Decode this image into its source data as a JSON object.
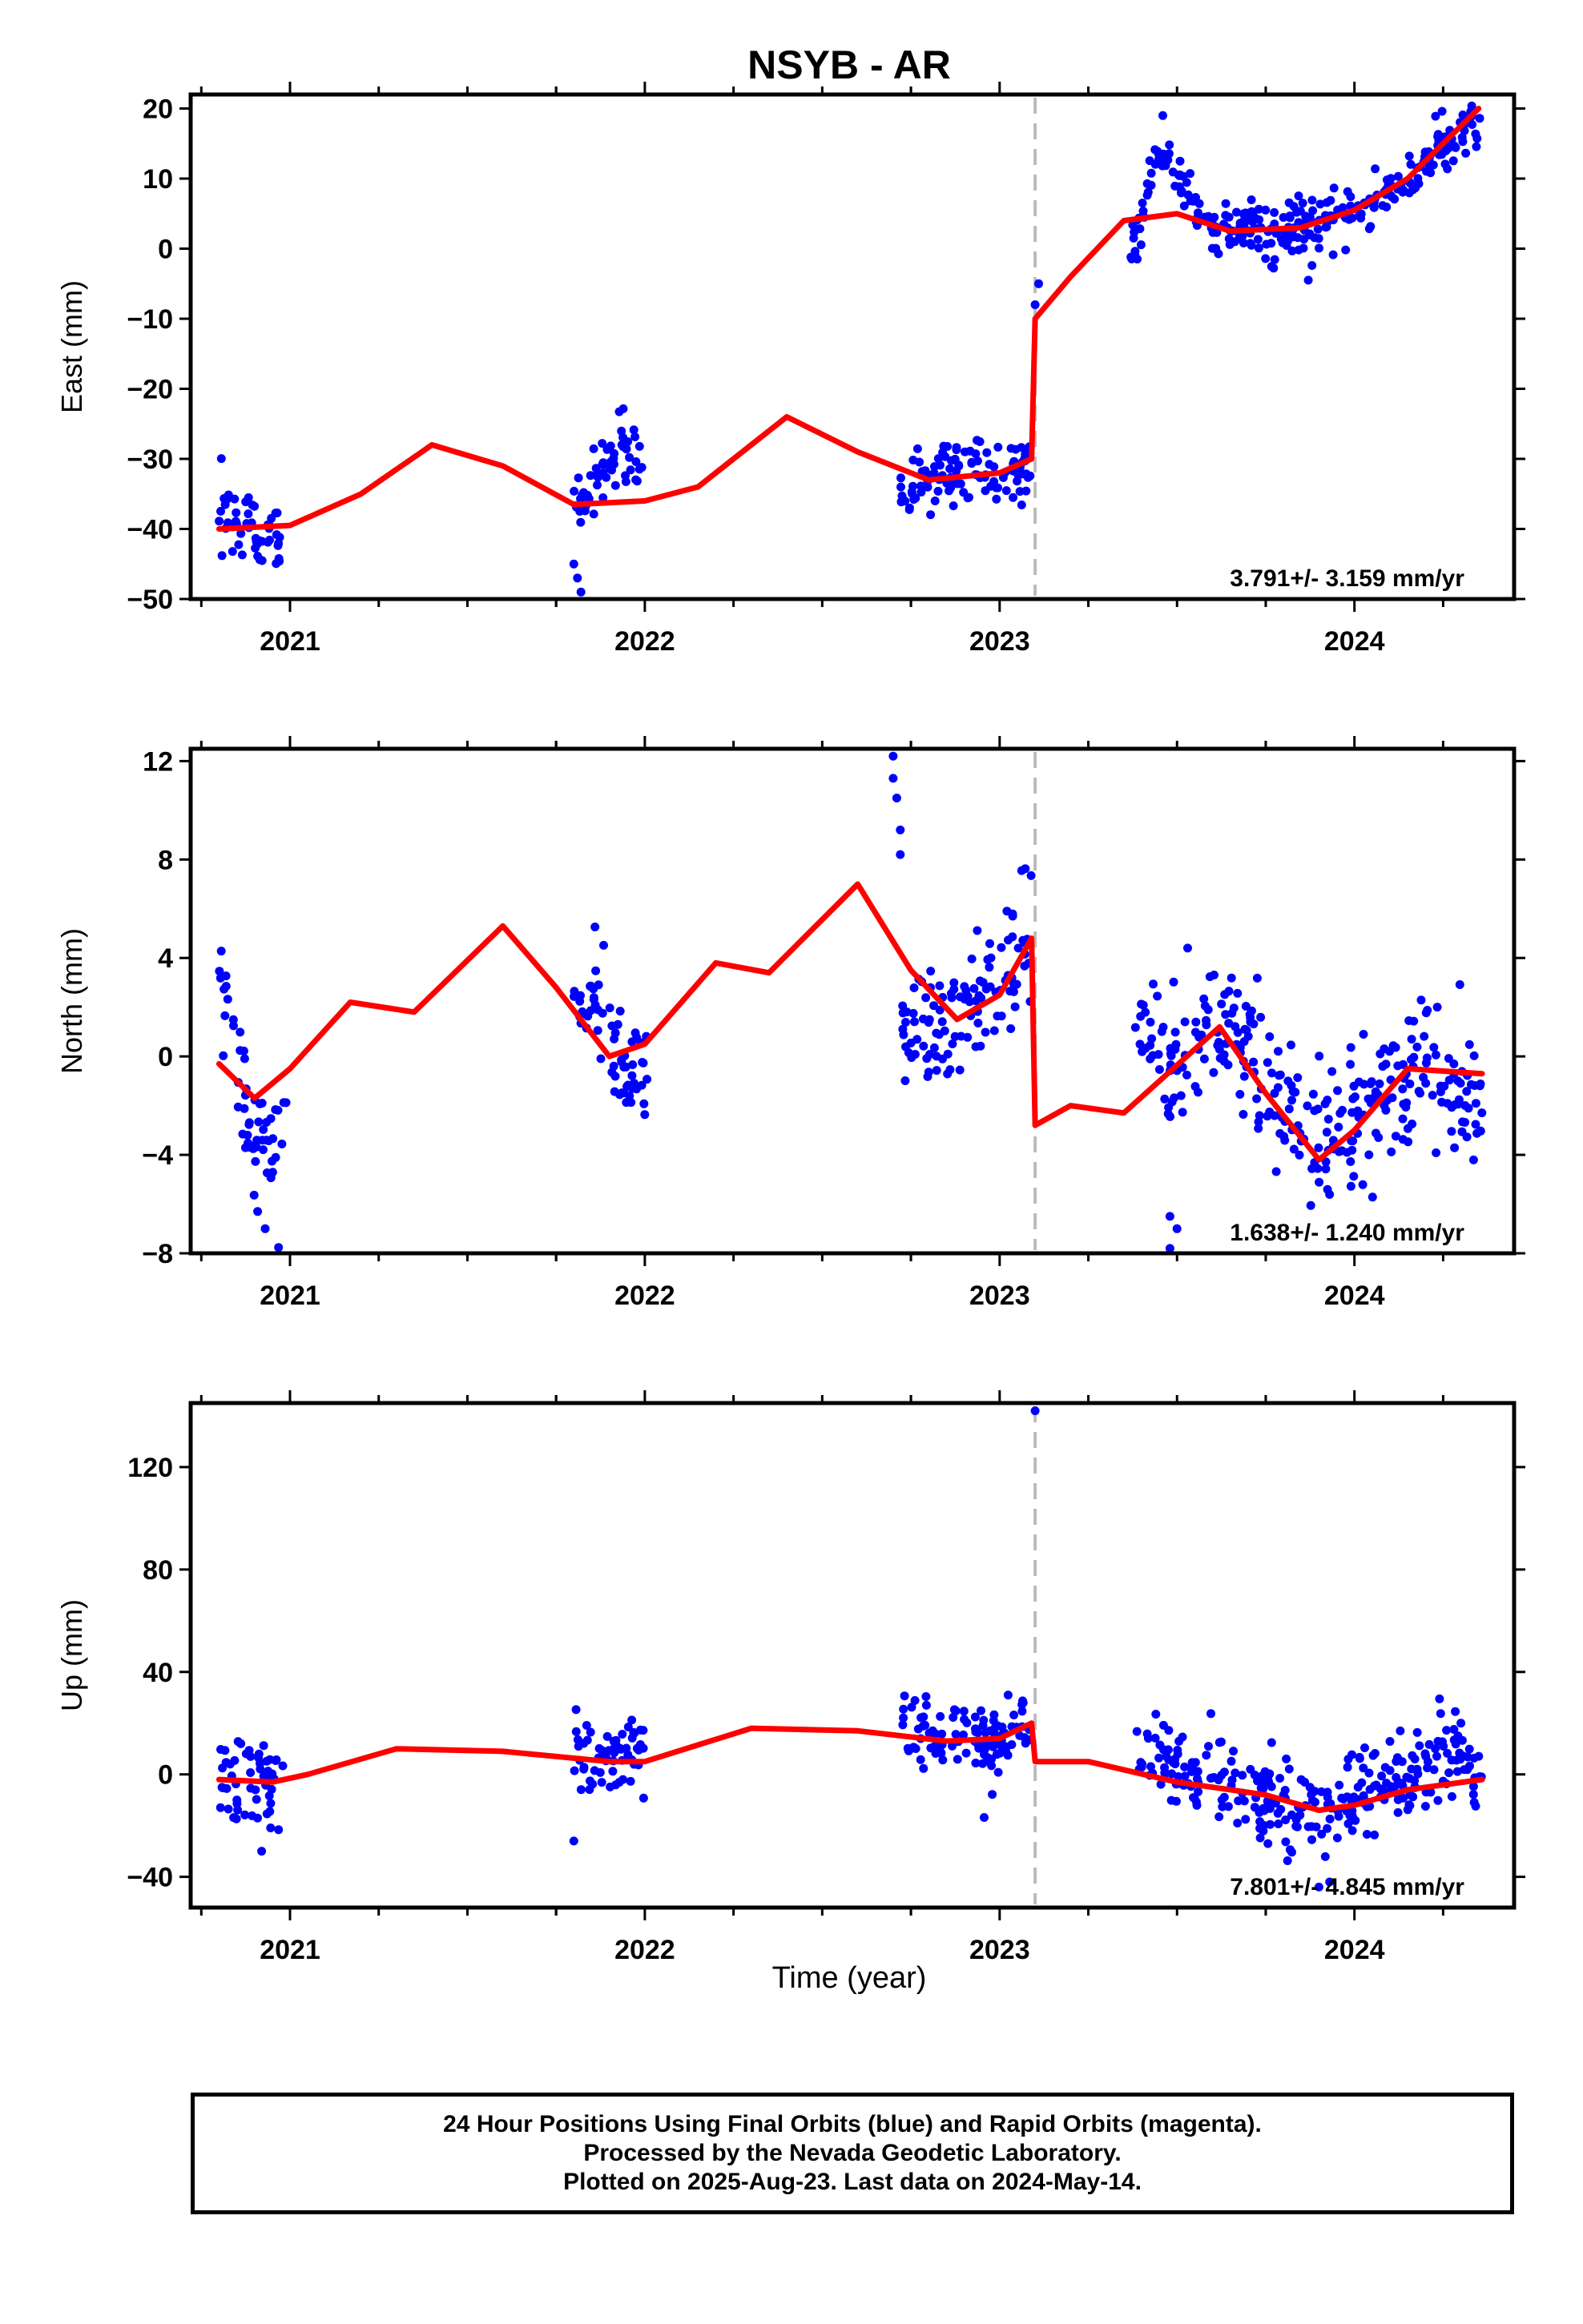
{
  "chart_data": {
    "type": "scatter",
    "title": "NSYB - AR",
    "xlabel": "Time (year)",
    "x_ticks": [
      "2021",
      "2022",
      "2023",
      "2024"
    ],
    "xlim": [
      2020.72,
      2024.45
    ],
    "offset_epoch": 2023.1,
    "colors": {
      "final_orbits": "#0000ff",
      "model_fit": "#ff0000",
      "offset_line": "#bbbbbb"
    },
    "panels": [
      {
        "name": "East",
        "ylabel": "East (mm)",
        "ylim": [
          -50,
          22
        ],
        "y_ticks": [
          20,
          10,
          0,
          -10,
          -20,
          -30,
          -40,
          -50
        ],
        "rate": "3.791+/- 3.159 mm/yr",
        "fit": [
          [
            2020.8,
            -40
          ],
          [
            2021.0,
            -39.5
          ],
          [
            2021.2,
            -35
          ],
          [
            2021.4,
            -28
          ],
          [
            2021.6,
            -31
          ],
          [
            2021.8,
            -36.5
          ],
          [
            2022.0,
            -36
          ],
          [
            2022.15,
            -34
          ],
          [
            2022.4,
            -24
          ],
          [
            2022.6,
            -29
          ],
          [
            2022.8,
            -33
          ],
          [
            2023.0,
            -32
          ],
          [
            2023.09,
            -30
          ],
          [
            2023.1,
            -10
          ],
          [
            2023.2,
            -4
          ],
          [
            2023.35,
            4
          ],
          [
            2023.5,
            5
          ],
          [
            2023.65,
            2.5
          ],
          [
            2023.85,
            3
          ],
          [
            2024.0,
            5.5
          ],
          [
            2024.15,
            10
          ],
          [
            2024.35,
            20
          ]
        ],
        "clusters": [
          {
            "x0": 2020.8,
            "x1": 2020.98,
            "points": [
              [
                2020.8,
                -36.5
              ],
              [
                2020.83,
                -39
              ],
              [
                2020.86,
                -42
              ],
              [
                2020.89,
                -38
              ],
              [
                2020.92,
                -44
              ],
              [
                2020.95,
                -40
              ],
              [
                2020.98,
                -43
              ]
            ],
            "scatter": 2.5
          },
          {
            "x0": 2021.8,
            "x1": 2022.0,
            "points": [
              [
                2021.8,
                -37
              ],
              [
                2021.84,
                -35
              ],
              [
                2021.88,
                -32
              ],
              [
                2021.93,
                -29
              ],
              [
                2021.97,
                -28
              ],
              [
                2022.0,
                -30
              ]
            ],
            "scatter": 2.5
          },
          {
            "x0": 2022.72,
            "x1": 2023.09,
            "points": [
              [
                2022.72,
                -36
              ],
              [
                2022.8,
                -31
              ],
              [
                2022.9,
                -32
              ],
              [
                2023.0,
                -32.5
              ],
              [
                2023.09,
                -31
              ]
            ],
            "scatter": 2.5
          },
          {
            "x0": 2023.37,
            "x1": 2024.36,
            "points": [
              [
                2023.38,
                0
              ],
              [
                2023.45,
                15
              ],
              [
                2023.52,
                8
              ],
              [
                2023.6,
                3
              ],
              [
                2023.75,
                2
              ],
              [
                2023.9,
                3.5
              ],
              [
                2024.0,
                5
              ],
              [
                2024.15,
                10
              ],
              [
                2024.36,
                19
              ]
            ],
            "scatter": 2.0
          }
        ],
        "outliers": [
          [
            2021.81,
            -47
          ],
          [
            2021.82,
            -49
          ],
          [
            2021.8,
            -45
          ],
          [
            2023.1,
            -8
          ],
          [
            2023.11,
            -5
          ],
          [
            2023.46,
            19
          ],
          [
            2023.87,
            -4.5
          ]
        ]
      },
      {
        "name": "North",
        "ylabel": "North (mm)",
        "ylim": [
          -8,
          12.5
        ],
        "y_ticks": [
          12,
          8,
          4,
          0,
          -4,
          -8
        ],
        "rate": "1.638+/- 1.240 mm/yr",
        "fit": [
          [
            2020.8,
            -0.3
          ],
          [
            2020.9,
            -1.7
          ],
          [
            2021.0,
            -0.5
          ],
          [
            2021.17,
            2.2
          ],
          [
            2021.35,
            1.8
          ],
          [
            2021.6,
            5.3
          ],
          [
            2021.75,
            2.8
          ],
          [
            2021.9,
            0
          ],
          [
            2022.0,
            0.5
          ],
          [
            2022.2,
            3.8
          ],
          [
            2022.35,
            3.4
          ],
          [
            2022.6,
            7
          ],
          [
            2022.75,
            3.5
          ],
          [
            2022.88,
            1.5
          ],
          [
            2023.0,
            2.5
          ],
          [
            2023.09,
            4.8
          ],
          [
            2023.1,
            -2.8
          ],
          [
            2023.2,
            -2.0
          ],
          [
            2023.35,
            -2.3
          ],
          [
            2023.62,
            1.2
          ],
          [
            2023.75,
            -1.5
          ],
          [
            2023.9,
            -4.2
          ],
          [
            2024.0,
            -3
          ],
          [
            2024.15,
            -0.5
          ],
          [
            2024.36,
            -0.7
          ]
        ],
        "clusters": [
          {
            "x0": 2020.8,
            "x1": 2020.99,
            "points": [
              [
                2020.8,
                2
              ],
              [
                2020.84,
                1
              ],
              [
                2020.88,
                -2.5
              ],
              [
                2020.92,
                -3.5
              ],
              [
                2020.96,
                -4
              ],
              [
                2020.99,
                -3
              ]
            ],
            "scatter": 1.2
          },
          {
            "x0": 2021.8,
            "x1": 2022.01,
            "points": [
              [
                2021.8,
                2.5
              ],
              [
                2021.85,
                2.5
              ],
              [
                2021.9,
                1
              ],
              [
                2021.95,
                -0.5
              ],
              [
                2022.01,
                -1
              ]
            ],
            "scatter": 1.2
          },
          {
            "x0": 2022.72,
            "x1": 2023.09,
            "points": [
              [
                2022.72,
                1.5
              ],
              [
                2022.8,
                1
              ],
              [
                2022.9,
                1.5
              ],
              [
                2023.0,
                3.5
              ],
              [
                2023.09,
                4.5
              ]
            ],
            "scatter": 1.3
          },
          {
            "x0": 2023.38,
            "x1": 2024.36,
            "points": [
              [
                2023.4,
                1
              ],
              [
                2023.5,
                -1
              ],
              [
                2023.6,
                1.5
              ],
              [
                2023.7,
                0.5
              ],
              [
                2023.8,
                -2.5
              ],
              [
                2023.9,
                -3.5
              ],
              [
                2024.0,
                -3
              ],
              [
                2024.1,
                -1
              ],
              [
                2024.2,
                -0.5
              ],
              [
                2024.36,
                -2
              ]
            ],
            "scatter": 1.4
          }
        ],
        "outliers": [
          [
            2022.7,
            12.2
          ],
          [
            2022.7,
            11.3
          ],
          [
            2022.71,
            10.5
          ],
          [
            2022.72,
            9.2
          ],
          [
            2022.72,
            8.2
          ],
          [
            2023.48,
            -6.5
          ],
          [
            2023.48,
            -7.8
          ],
          [
            2023.5,
            -7
          ],
          [
            2023.53,
            4.4
          ],
          [
            2020.93,
            -7
          ]
        ]
      },
      {
        "name": "Up",
        "ylabel": "Up (mm)",
        "ylim": [
          -52,
          145
        ],
        "y_ticks": [
          120,
          80,
          40,
          0,
          -40
        ],
        "rate": "7.801+/- 4.845 mm/yr",
        "fit": [
          [
            2020.8,
            -2
          ],
          [
            2020.95,
            -3
          ],
          [
            2021.05,
            0
          ],
          [
            2021.3,
            10
          ],
          [
            2021.6,
            9
          ],
          [
            2021.9,
            5
          ],
          [
            2022.0,
            5
          ],
          [
            2022.3,
            18
          ],
          [
            2022.6,
            17
          ],
          [
            2022.85,
            13
          ],
          [
            2023.0,
            14
          ],
          [
            2023.09,
            20
          ],
          [
            2023.1,
            5
          ],
          [
            2023.25,
            5
          ],
          [
            2023.5,
            -3
          ],
          [
            2023.75,
            -8
          ],
          [
            2023.9,
            -14
          ],
          [
            2024.0,
            -12
          ],
          [
            2024.15,
            -6
          ],
          [
            2024.36,
            -2
          ]
        ],
        "clusters": [
          {
            "x0": 2020.8,
            "x1": 2020.98,
            "points": [
              [
                2020.8,
                -2
              ],
              [
                2020.88,
                -3
              ],
              [
                2020.98,
                -4
              ]
            ],
            "scatter": 9
          },
          {
            "x0": 2021.8,
            "x1": 2022.0,
            "points": [
              [
                2021.8,
                5
              ],
              [
                2021.9,
                7
              ],
              [
                2022.0,
                7
              ]
            ],
            "scatter": 7
          },
          {
            "x0": 2022.72,
            "x1": 2023.09,
            "points": [
              [
                2022.72,
                17
              ],
              [
                2022.85,
                15
              ],
              [
                2023.0,
                14
              ],
              [
                2023.09,
                18
              ]
            ],
            "scatter": 7
          },
          {
            "x0": 2023.38,
            "x1": 2024.36,
            "points": [
              [
                2023.4,
                10
              ],
              [
                2023.55,
                0
              ],
              [
                2023.7,
                -8
              ],
              [
                2023.85,
                -14
              ],
              [
                2023.95,
                -14
              ],
              [
                2024.1,
                -3
              ],
              [
                2024.25,
                5
              ],
              [
                2024.36,
                0
              ]
            ],
            "scatter": 8
          }
        ],
        "outliers": [
          [
            2023.1,
            142
          ],
          [
            2020.92,
            -30
          ],
          [
            2021.8,
            -26
          ],
          [
            2023.9,
            -44
          ],
          [
            2023.93,
            -42
          ],
          [
            2024.3,
            20
          ]
        ]
      }
    ]
  },
  "footer": {
    "line1": "24 Hour Positions Using Final Orbits (blue) and Rapid Orbits (magenta).",
    "line2": "Processed by the Nevada Geodetic Laboratory.",
    "line3": "Plotted on 2025-Aug-23. Last data on 2024-May-14."
  }
}
